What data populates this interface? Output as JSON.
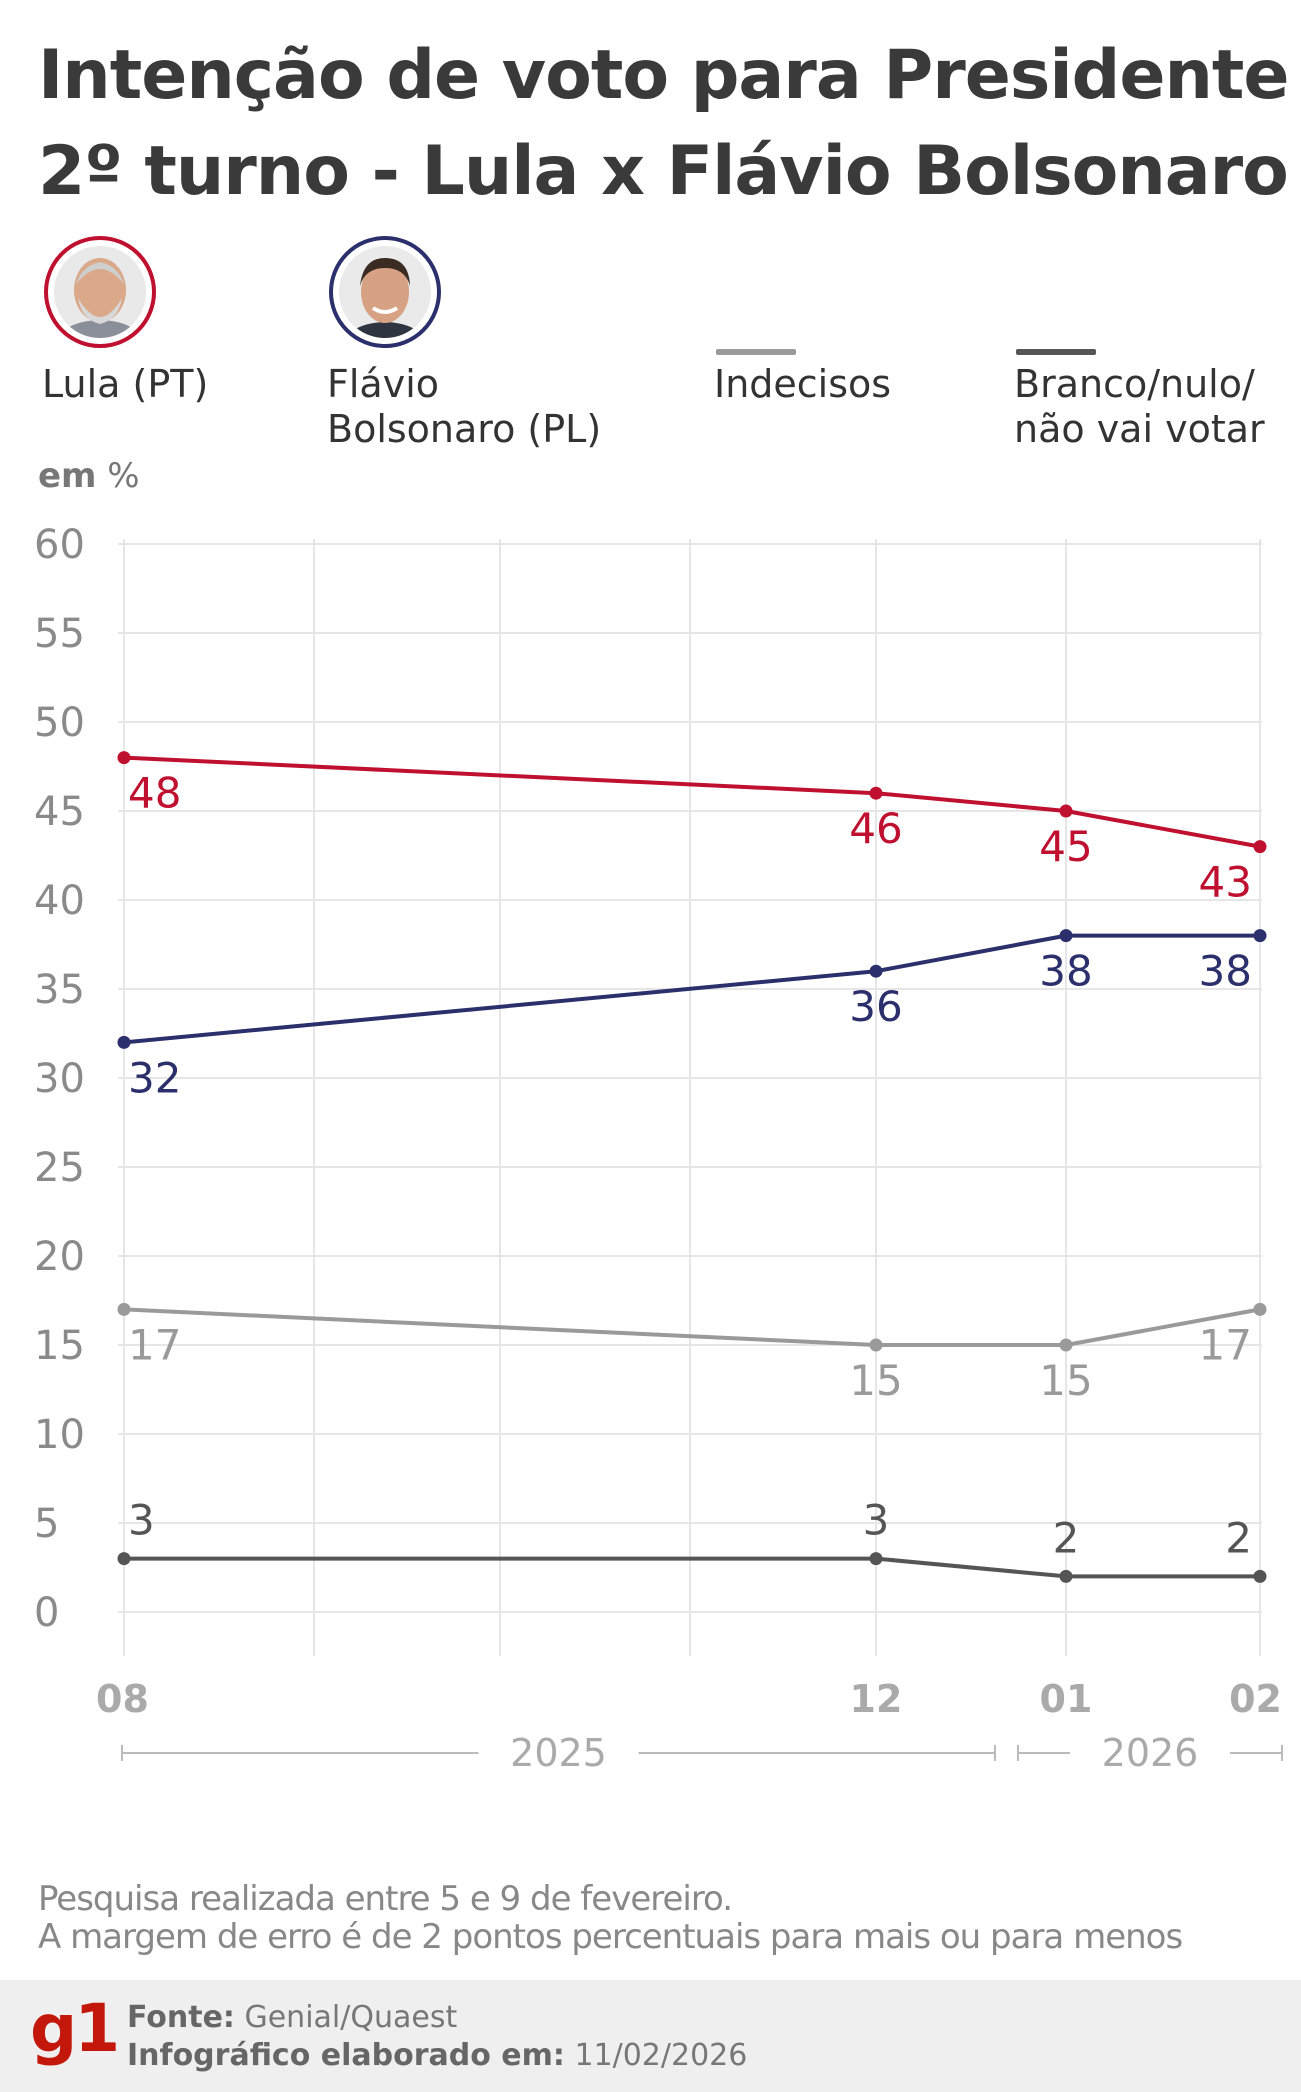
{
  "title_line1": "Intenção de voto para Presidente",
  "title_line2": "2º turno - Lula x Flávio Bolsonaro",
  "legend": {
    "lula": {
      "label": "Lula (PT)",
      "color": "#c0102f"
    },
    "flavio": {
      "label_line1": "Flávio",
      "label_line2": "Bolsonaro (PL)",
      "color": "#2b2f6b"
    },
    "indecisos": {
      "label": "Indecisos",
      "color": "#999999"
    },
    "branco": {
      "label_line1": "Branco/nulo/",
      "label_line2": "não vai votar",
      "color": "#555555"
    }
  },
  "unit": {
    "bold": "em",
    "rest": " %"
  },
  "chart_data": {
    "type": "line",
    "x": [
      "08",
      "12",
      "01",
      "02"
    ],
    "year_groups": [
      {
        "label": "2025",
        "from": "08",
        "to": "12"
      },
      {
        "label": "2026",
        "from": "01",
        "to": "02"
      }
    ],
    "ylim": [
      0,
      60
    ],
    "yticks": [
      60,
      55,
      50,
      45,
      40,
      35,
      30,
      25,
      20,
      15,
      10,
      5,
      0
    ],
    "grid": true,
    "series": [
      {
        "name": "Lula (PT)",
        "color": "#c0102f",
        "values": [
          48,
          46,
          45,
          43
        ],
        "labelPos": "below"
      },
      {
        "name": "Flávio Bolsonaro (PL)",
        "color": "#2b2f6b",
        "values": [
          32,
          36,
          38,
          38
        ],
        "labelPos": "below"
      },
      {
        "name": "Indecisos",
        "color": "#9a9a9a",
        "values": [
          17,
          15,
          15,
          17
        ],
        "labelPos": "below"
      },
      {
        "name": "Branco/nulo/não vai votar",
        "color": "#555555",
        "values": [
          3,
          3,
          2,
          2
        ],
        "labelPos": "above"
      }
    ]
  },
  "note_line1": "Pesquisa realizada entre 5 e 9 de fevereiro.",
  "note_line2": "A margem de erro é de 2 pontos percentuais para mais ou para menos",
  "footer": {
    "logo": "g1",
    "source_label": "Fonte:",
    "source_value": " Genial/Quaest",
    "made_label": "Infográfico elaborado em:",
    "made_value": " 11/02/2026"
  }
}
